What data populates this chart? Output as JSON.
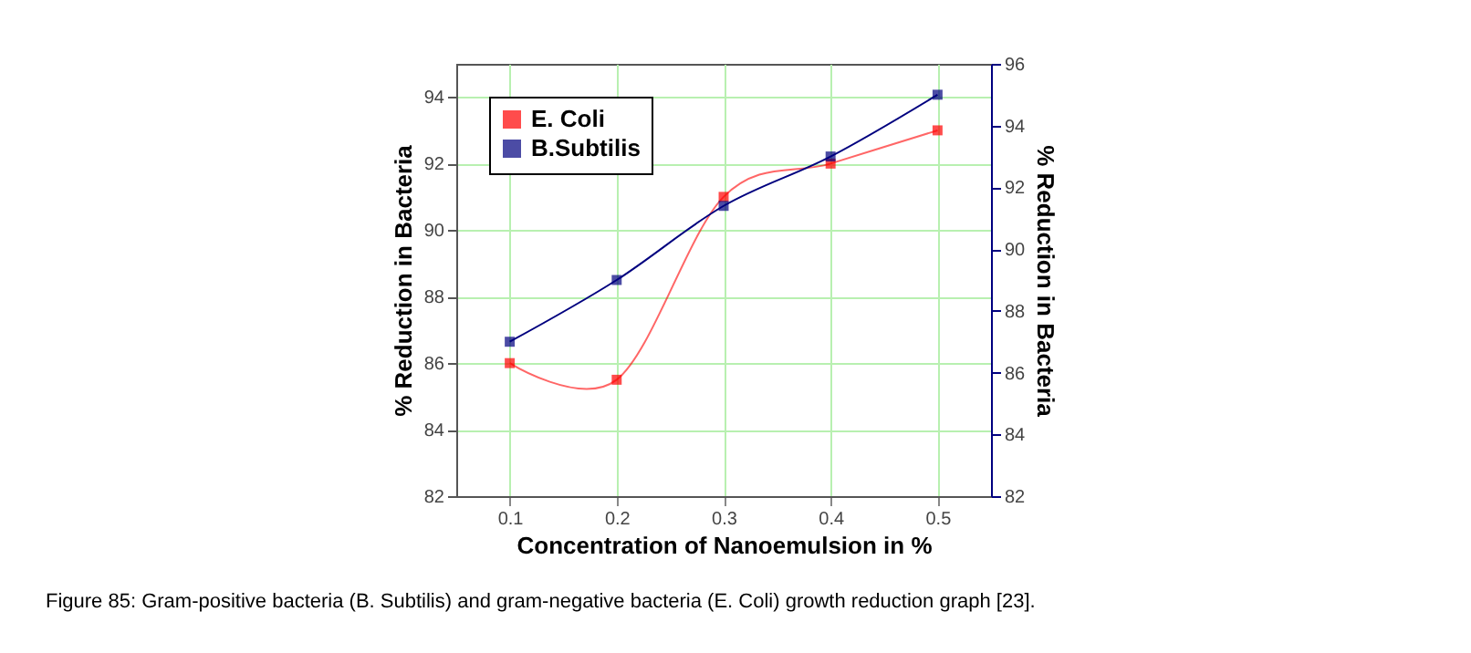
{
  "chart_data": {
    "type": "line",
    "xlabel": "Concentration of Nanoemulsion in %",
    "ylabel": "% Reduction in Bacteria",
    "y2label": "% Reduction in Bacteria",
    "x": [
      0.1,
      0.2,
      0.3,
      0.4,
      0.5
    ],
    "series": [
      {
        "name": "E. Coli",
        "color": "#ff0000",
        "values": [
          86,
          85.5,
          91,
          92,
          93
        ]
      },
      {
        "name": "B.Subtilis",
        "color": "#00007f",
        "values": [
          87,
          89,
          91.4,
          93,
          95
        ],
        "axis": "y2"
      }
    ],
    "xlim": [
      0.05,
      0.55
    ],
    "xticks": [
      0.1,
      0.2,
      0.3,
      0.4,
      0.5
    ],
    "ylim": [
      82,
      95
    ],
    "yticks": [
      82,
      84,
      86,
      88,
      90,
      92,
      94
    ],
    "y2lim": [
      82,
      96
    ],
    "y2ticks": [
      82,
      84,
      86,
      88,
      90,
      92,
      94,
      96
    ],
    "grid": true,
    "legend": "top left",
    "marker": "square",
    "line_style": "solid",
    "annotations": [
      "Figure 85: Gram-positive bacteria (B. Subtilis) and gram-negative bacteria (E. Coli) growth reduction graph [23]."
    ]
  }
}
